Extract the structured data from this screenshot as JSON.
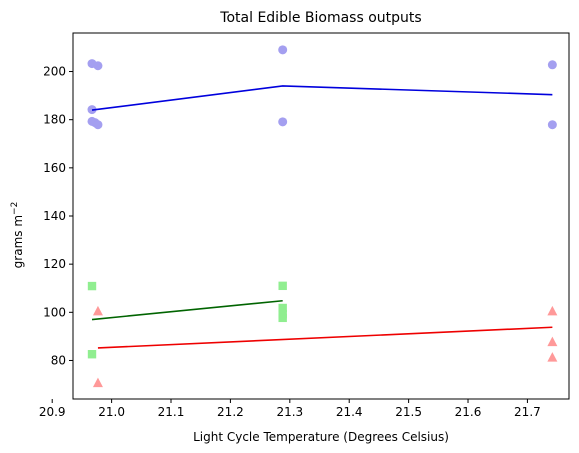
{
  "chart_data": {
    "type": "scatter",
    "title": "Total Edible Biomass outputs",
    "xlabel": "Light Cycle Temperature (Degrees Celsius)",
    "ylabel": "grams m",
    "ylabel_superscript": "−2",
    "xlim": [
      20.935,
      21.77
    ],
    "ylim": [
      64,
      216
    ],
    "xticks": [
      "20.9",
      "21.0",
      "21.1",
      "21.2",
      "21.3",
      "21.4",
      "21.5",
      "21.6",
      "21.7"
    ],
    "yticks": [
      "80",
      "100",
      "120",
      "140",
      "160",
      "180",
      "200"
    ],
    "grid": false,
    "series": [
      {
        "marker": "circle",
        "color": "#a49ff0",
        "points": [
          [
            20.967,
            203.3
          ],
          [
            20.977,
            202.4
          ],
          [
            20.967,
            184.2
          ],
          [
            20.967,
            179.3
          ],
          [
            20.972,
            178.8
          ],
          [
            20.977,
            177.9
          ],
          [
            21.288,
            209.0
          ],
          [
            21.288,
            179.1
          ],
          [
            21.742,
            202.8
          ],
          [
            21.742,
            177.9
          ]
        ]
      },
      {
        "marker": "square",
        "color": "#90ee90",
        "points": [
          [
            20.967,
            110.9
          ],
          [
            20.967,
            82.6
          ],
          [
            21.288,
            111.0
          ],
          [
            21.288,
            101.8
          ],
          [
            21.288,
            99.2
          ],
          [
            21.288,
            97.7
          ]
        ]
      },
      {
        "marker": "triangle",
        "color": "#ff9999",
        "points": [
          [
            20.977,
            100.4
          ],
          [
            20.977,
            70.6
          ],
          [
            21.742,
            100.4
          ],
          [
            21.742,
            87.6
          ],
          [
            21.742,
            81.2
          ]
        ]
      }
    ],
    "lines": [
      {
        "color": "#0000dd",
        "points": [
          [
            20.967,
            184.0
          ],
          [
            21.288,
            194.0
          ],
          [
            21.742,
            190.4
          ]
        ]
      },
      {
        "color": "#006400",
        "points": [
          [
            20.967,
            97.0
          ],
          [
            21.288,
            104.8
          ]
        ]
      },
      {
        "color": "#ee0000",
        "points": [
          [
            20.977,
            85.2
          ],
          [
            21.742,
            93.8
          ]
        ]
      }
    ]
  }
}
